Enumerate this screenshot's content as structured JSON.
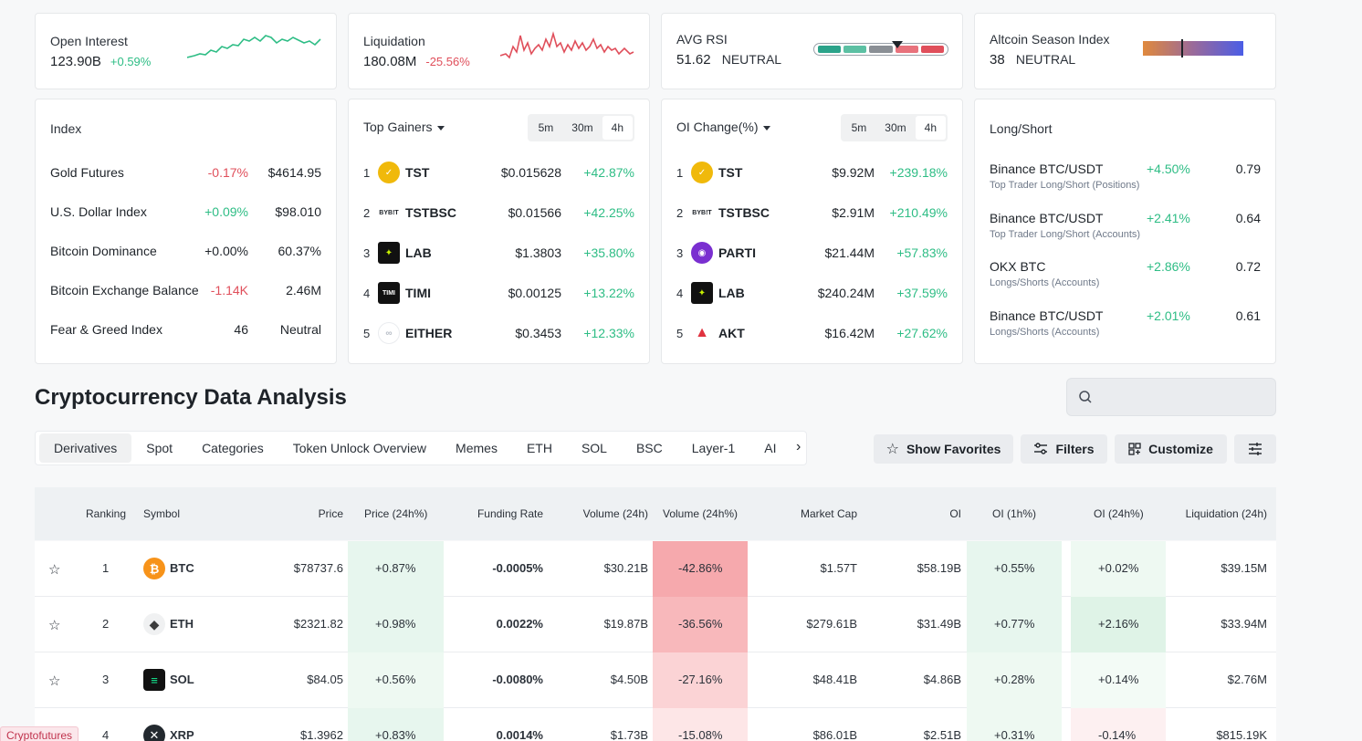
{
  "open_interest": {
    "label": "Open Interest",
    "value": "123.90B",
    "change": "+0.59%"
  },
  "liquidation": {
    "label": "Liquidation",
    "value": "180.08M",
    "change": "-25.56%"
  },
  "avg_rsi": {
    "label": "AVG RSI",
    "value": "51.62",
    "status": "NEUTRAL",
    "level_fraction": 0.57
  },
  "altcoin_season": {
    "label": "Altcoin Season Index",
    "value": "38",
    "status": "NEUTRAL",
    "level_fraction": 0.38
  },
  "index": {
    "title": "Index",
    "rows": [
      {
        "name": "Gold Futures",
        "change": "-0.17%",
        "value": "$4614.95"
      },
      {
        "name": "U.S. Dollar Index",
        "change": "+0.09%",
        "value": "$98.010"
      },
      {
        "name": "Bitcoin Dominance",
        "change": "+0.00%",
        "value": "60.37%"
      },
      {
        "name": "Bitcoin Exchange Balance",
        "change": "-1.14K",
        "value": "2.46M"
      },
      {
        "name": "Fear & Greed Index",
        "change": "46",
        "value": "Neutral"
      }
    ]
  },
  "top_gainers": {
    "title": "Top Gainers",
    "intervals": [
      "5m",
      "30m",
      "4h"
    ],
    "rows": [
      {
        "rank": "1",
        "symbol": "TST",
        "price": "$0.015628",
        "change": "+42.87%"
      },
      {
        "rank": "2",
        "symbol": "TSTBSC",
        "price": "$0.01566",
        "change": "+42.25%"
      },
      {
        "rank": "3",
        "symbol": "LAB",
        "price": "$1.3803",
        "change": "+35.80%"
      },
      {
        "rank": "4",
        "symbol": "TIMI",
        "price": "$0.00125",
        "change": "+13.22%"
      },
      {
        "rank": "5",
        "symbol": "EITHER",
        "price": "$0.3453",
        "change": "+12.33%"
      }
    ]
  },
  "oi_change": {
    "title": "OI Change(%)",
    "intervals": [
      "5m",
      "30m",
      "4h"
    ],
    "rows": [
      {
        "rank": "1",
        "symbol": "TST",
        "value": "$9.92M",
        "change": "+239.18%"
      },
      {
        "rank": "2",
        "symbol": "TSTBSC",
        "value": "$2.91M",
        "change": "+210.49%"
      },
      {
        "rank": "3",
        "symbol": "PARTI",
        "value": "$21.44M",
        "change": "+57.83%"
      },
      {
        "rank": "4",
        "symbol": "LAB",
        "value": "$240.24M",
        "change": "+37.59%"
      },
      {
        "rank": "5",
        "symbol": "AKT",
        "value": "$16.42M",
        "change": "+27.62%"
      }
    ]
  },
  "long_short": {
    "title": "Long/Short",
    "rows": [
      {
        "name": "Binance BTC/USDT",
        "sub": "Top Trader Long/Short (Positions)",
        "change": "+4.50%",
        "value": "0.79"
      },
      {
        "name": "Binance BTC/USDT",
        "sub": "Top Trader Long/Short (Accounts)",
        "change": "+2.41%",
        "value": "0.64"
      },
      {
        "name": "OKX BTC",
        "sub": "Longs/Shorts (Accounts)",
        "change": "+2.86%",
        "value": "0.72"
      },
      {
        "name": "Binance BTC/USDT",
        "sub": "Longs/Shorts (Accounts)",
        "change": "+2.01%",
        "value": "0.61"
      }
    ]
  },
  "section_title": "Cryptocurrency Data Analysis",
  "tabs": [
    "Derivatives",
    "Spot",
    "Categories",
    "Token Unlock Overview",
    "Memes",
    "ETH",
    "SOL",
    "BSC",
    "Layer-1",
    "AI"
  ],
  "buttons": {
    "favorites": "Show Favorites",
    "filters": "Filters",
    "customize": "Customize"
  },
  "table": {
    "headers": [
      "Ranking",
      "Symbol",
      "Price",
      "Price (24h%)",
      "Funding Rate",
      "Volume (24h)",
      "Volume (24h%)",
      "Market Cap",
      "OI",
      "OI (1h%)",
      "OI (24h%)",
      "Liquidation (24h)"
    ],
    "rows": [
      {
        "rank": "1",
        "symbol": "BTC",
        "price": "$78737.6",
        "price_chg": "+0.87%",
        "funding": "-0.0005%",
        "volume": "$30.21B",
        "volume_chg": "-42.86%",
        "mcap": "$1.57T",
        "oi": "$58.19B",
        "oi_1h": "+0.55%",
        "oi_24h": "+0.02%",
        "liq": "$39.15M"
      },
      {
        "rank": "2",
        "symbol": "ETH",
        "price": "$2321.82",
        "price_chg": "+0.98%",
        "funding": "0.0022%",
        "volume": "$19.87B",
        "volume_chg": "-36.56%",
        "mcap": "$279.61B",
        "oi": "$31.49B",
        "oi_1h": "+0.77%",
        "oi_24h": "+2.16%",
        "liq": "$33.94M"
      },
      {
        "rank": "3",
        "symbol": "SOL",
        "price": "$84.05",
        "price_chg": "+0.56%",
        "funding": "-0.0080%",
        "volume": "$4.50B",
        "volume_chg": "-27.16%",
        "mcap": "$48.41B",
        "oi": "$4.86B",
        "oi_1h": "+0.28%",
        "oi_24h": "+0.14%",
        "liq": "$2.76M"
      },
      {
        "rank": "4",
        "symbol": "XRP",
        "price": "$1.3962",
        "price_chg": "+0.83%",
        "funding": "0.0014%",
        "volume": "$1.73B",
        "volume_chg": "-15.08%",
        "mcap": "$86.01B",
        "oi": "$2.51B",
        "oi_1h": "+0.31%",
        "oi_24h": "-0.14%",
        "liq": "$815.19K"
      }
    ]
  },
  "toast": "Cryptofutures",
  "colors": {
    "positive": "#2ebd85",
    "negative": "#e04f5b",
    "accent": "#f0b90b"
  }
}
